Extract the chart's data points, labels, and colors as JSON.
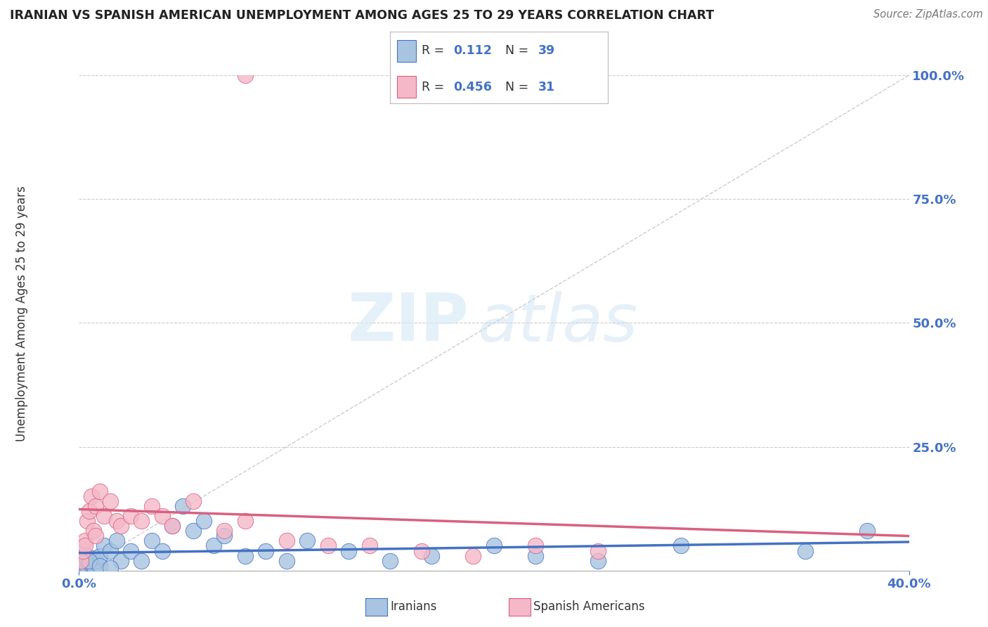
{
  "title": "IRANIAN VS SPANISH AMERICAN UNEMPLOYMENT AMONG AGES 25 TO 29 YEARS CORRELATION CHART",
  "source": "Source: ZipAtlas.com",
  "ylabel": "Unemployment Among Ages 25 to 29 years",
  "xmin": 0.0,
  "xmax": 0.4,
  "ymin": 0.0,
  "ymax": 1.0,
  "yticks": [
    0.0,
    0.25,
    0.5,
    0.75,
    1.0
  ],
  "gridline_color": "#cccccc",
  "background_color": "#ffffff",
  "iranians_color": "#a8c4e0",
  "spanish_color": "#f4b8c8",
  "iranians_line_color": "#4472c4",
  "spanish_line_color": "#d96080",
  "diagonal_color": "#cccccc",
  "legend_R1": "0.112",
  "legend_N1": "39",
  "legend_R2": "0.456",
  "legend_N2": "31",
  "watermark_zip": "ZIP",
  "watermark_atlas": "atlas",
  "iranians_x": [
    0.001,
    0.002,
    0.003,
    0.004,
    0.005,
    0.006,
    0.007,
    0.008,
    0.01,
    0.012,
    0.015,
    0.018,
    0.02,
    0.025,
    0.03,
    0.035,
    0.04,
    0.045,
    0.05,
    0.055,
    0.06,
    0.065,
    0.07,
    0.08,
    0.09,
    0.1,
    0.11,
    0.13,
    0.15,
    0.17,
    0.2,
    0.22,
    0.25,
    0.29,
    0.35,
    0.38,
    0.005,
    0.01,
    0.015
  ],
  "iranians_y": [
    0.02,
    0.01,
    0.03,
    0.005,
    0.015,
    0.025,
    0.01,
    0.02,
    0.03,
    0.05,
    0.04,
    0.06,
    0.02,
    0.04,
    0.02,
    0.06,
    0.04,
    0.09,
    0.13,
    0.08,
    0.1,
    0.05,
    0.07,
    0.03,
    0.04,
    0.02,
    0.06,
    0.04,
    0.02,
    0.03,
    0.05,
    0.03,
    0.02,
    0.05,
    0.04,
    0.08,
    0.02,
    0.01,
    0.005
  ],
  "spanish_x": [
    0.001,
    0.002,
    0.003,
    0.004,
    0.005,
    0.006,
    0.007,
    0.008,
    0.01,
    0.012,
    0.015,
    0.018,
    0.02,
    0.025,
    0.03,
    0.035,
    0.04,
    0.045,
    0.055,
    0.07,
    0.08,
    0.1,
    0.12,
    0.14,
    0.165,
    0.19,
    0.22,
    0.25,
    0.003,
    0.008,
    0.08
  ],
  "spanish_y": [
    0.02,
    0.04,
    0.06,
    0.1,
    0.12,
    0.15,
    0.08,
    0.13,
    0.16,
    0.11,
    0.14,
    0.1,
    0.09,
    0.11,
    0.1,
    0.13,
    0.11,
    0.09,
    0.14,
    0.08,
    0.1,
    0.06,
    0.05,
    0.05,
    0.04,
    0.03,
    0.05,
    0.04,
    0.05,
    0.07,
    1.0
  ]
}
